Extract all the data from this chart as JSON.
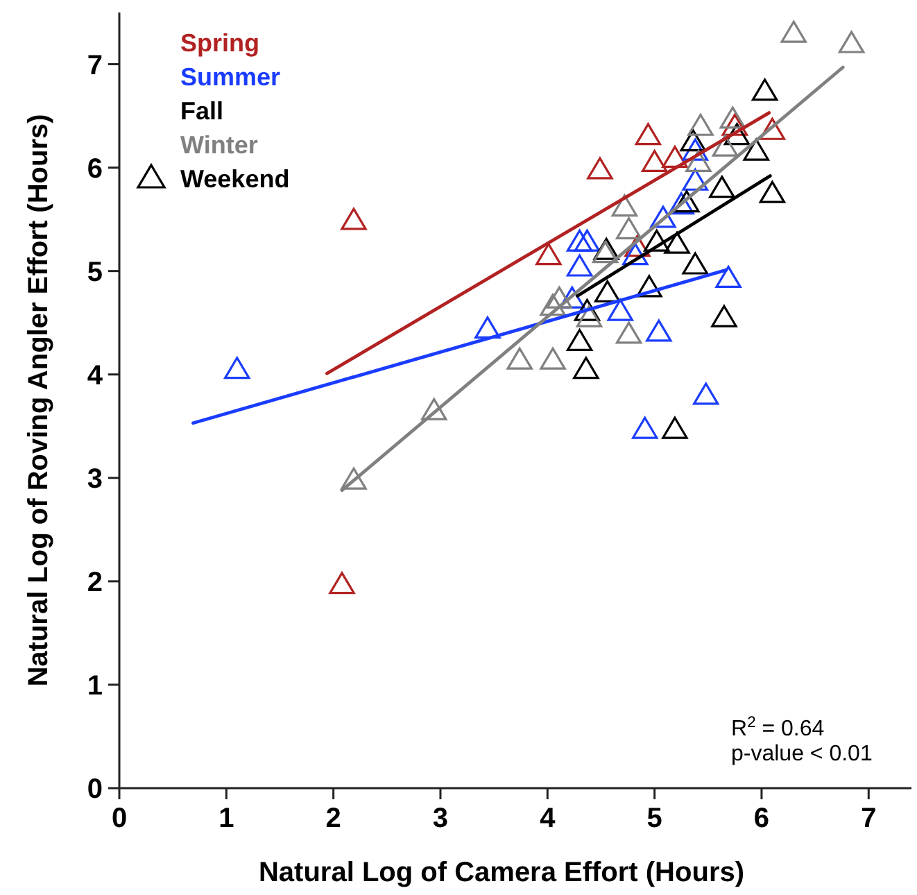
{
  "chart_data": {
    "type": "scatter",
    "xlabel": "Natural Log of Camera Effort (Hours)",
    "ylabel": "Natural Log of Roving Angler Effort (Hours)",
    "xlim": [
      0,
      7.4
    ],
    "ylim": [
      0,
      7.5
    ],
    "xticks": [
      0,
      1,
      2,
      3,
      4,
      5,
      6,
      7
    ],
    "yticks": [
      0,
      1,
      2,
      3,
      4,
      5,
      6,
      7
    ],
    "grid": false,
    "legend": "top left",
    "legend_title": "Weekend",
    "annotations": [
      "R$^{2}$ = 0.64",
      "p-value < 0.01"
    ],
    "series": [
      {
        "name": "Spring",
        "marker": "triangle",
        "color": "#b22222",
        "x": [
          2.08,
          2.19,
          4.01,
          4.49,
          4.94,
          5.0,
          5.19,
          4.84,
          5.75,
          6.1
        ],
        "values": [
          1.96,
          5.48,
          5.14,
          5.97,
          6.3,
          6.04,
          6.08,
          5.22,
          6.39,
          6.35
        ]
      },
      {
        "name": "Summer",
        "marker": "triangle",
        "color": "#1a3cff",
        "x": [
          1.1,
          3.44,
          4.3,
          4.37,
          4.3,
          4.23,
          4.82,
          5.08,
          5.25,
          5.38,
          5.38,
          4.68,
          5.04,
          5.69,
          5.48,
          4.91
        ],
        "values": [
          4.04,
          4.43,
          5.27,
          5.27,
          5.03,
          4.72,
          5.14,
          5.5,
          5.63,
          5.86,
          6.15,
          4.6,
          4.4,
          4.92,
          3.79,
          3.46
        ]
      },
      {
        "name": "Fall",
        "marker": "triangle",
        "color": "#000000",
        "x": [
          6.03,
          5.36,
          5.77,
          5.95,
          6.1,
          5.63,
          5.3,
          4.55,
          5.21,
          5.02,
          5.38,
          4.95,
          4.56,
          4.37,
          5.65,
          4.3,
          4.36,
          5.19
        ],
        "values": [
          6.73,
          6.24,
          6.3,
          6.15,
          5.74,
          5.79,
          5.65,
          5.19,
          5.25,
          5.27,
          5.05,
          4.83,
          4.78,
          4.6,
          4.54,
          4.31,
          4.04,
          3.46
        ]
      },
      {
        "name": "Winter",
        "marker": "triangle",
        "color": "#808080",
        "x": [
          6.3,
          6.84,
          5.43,
          5.73,
          5.66,
          5.41,
          4.72,
          4.76,
          4.54,
          4.05,
          4.11,
          4.39,
          4.76,
          3.74,
          4.05,
          2.94,
          2.19
        ],
        "values": [
          7.29,
          7.19,
          6.39,
          6.46,
          6.19,
          6.04,
          5.61,
          5.39,
          5.16,
          4.65,
          4.72,
          4.54,
          4.38,
          4.13,
          4.13,
          3.64,
          2.97
        ]
      },
      {
        "type": "line",
        "color": "#b22222",
        "x": [
          1.94,
          6.07
        ],
        "values": [
          4.01,
          6.53
        ]
      },
      {
        "type": "line",
        "color": "#1a3cff",
        "x": [
          0.69,
          5.67
        ],
        "values": [
          3.53,
          5.01
        ]
      },
      {
        "type": "line",
        "color": "#000000",
        "x": [
          4.28,
          6.08
        ],
        "values": [
          4.76,
          5.92
        ]
      },
      {
        "type": "line",
        "color": "#808080",
        "x": [
          2.08,
          6.76
        ],
        "values": [
          2.88,
          6.97
        ]
      }
    ]
  }
}
